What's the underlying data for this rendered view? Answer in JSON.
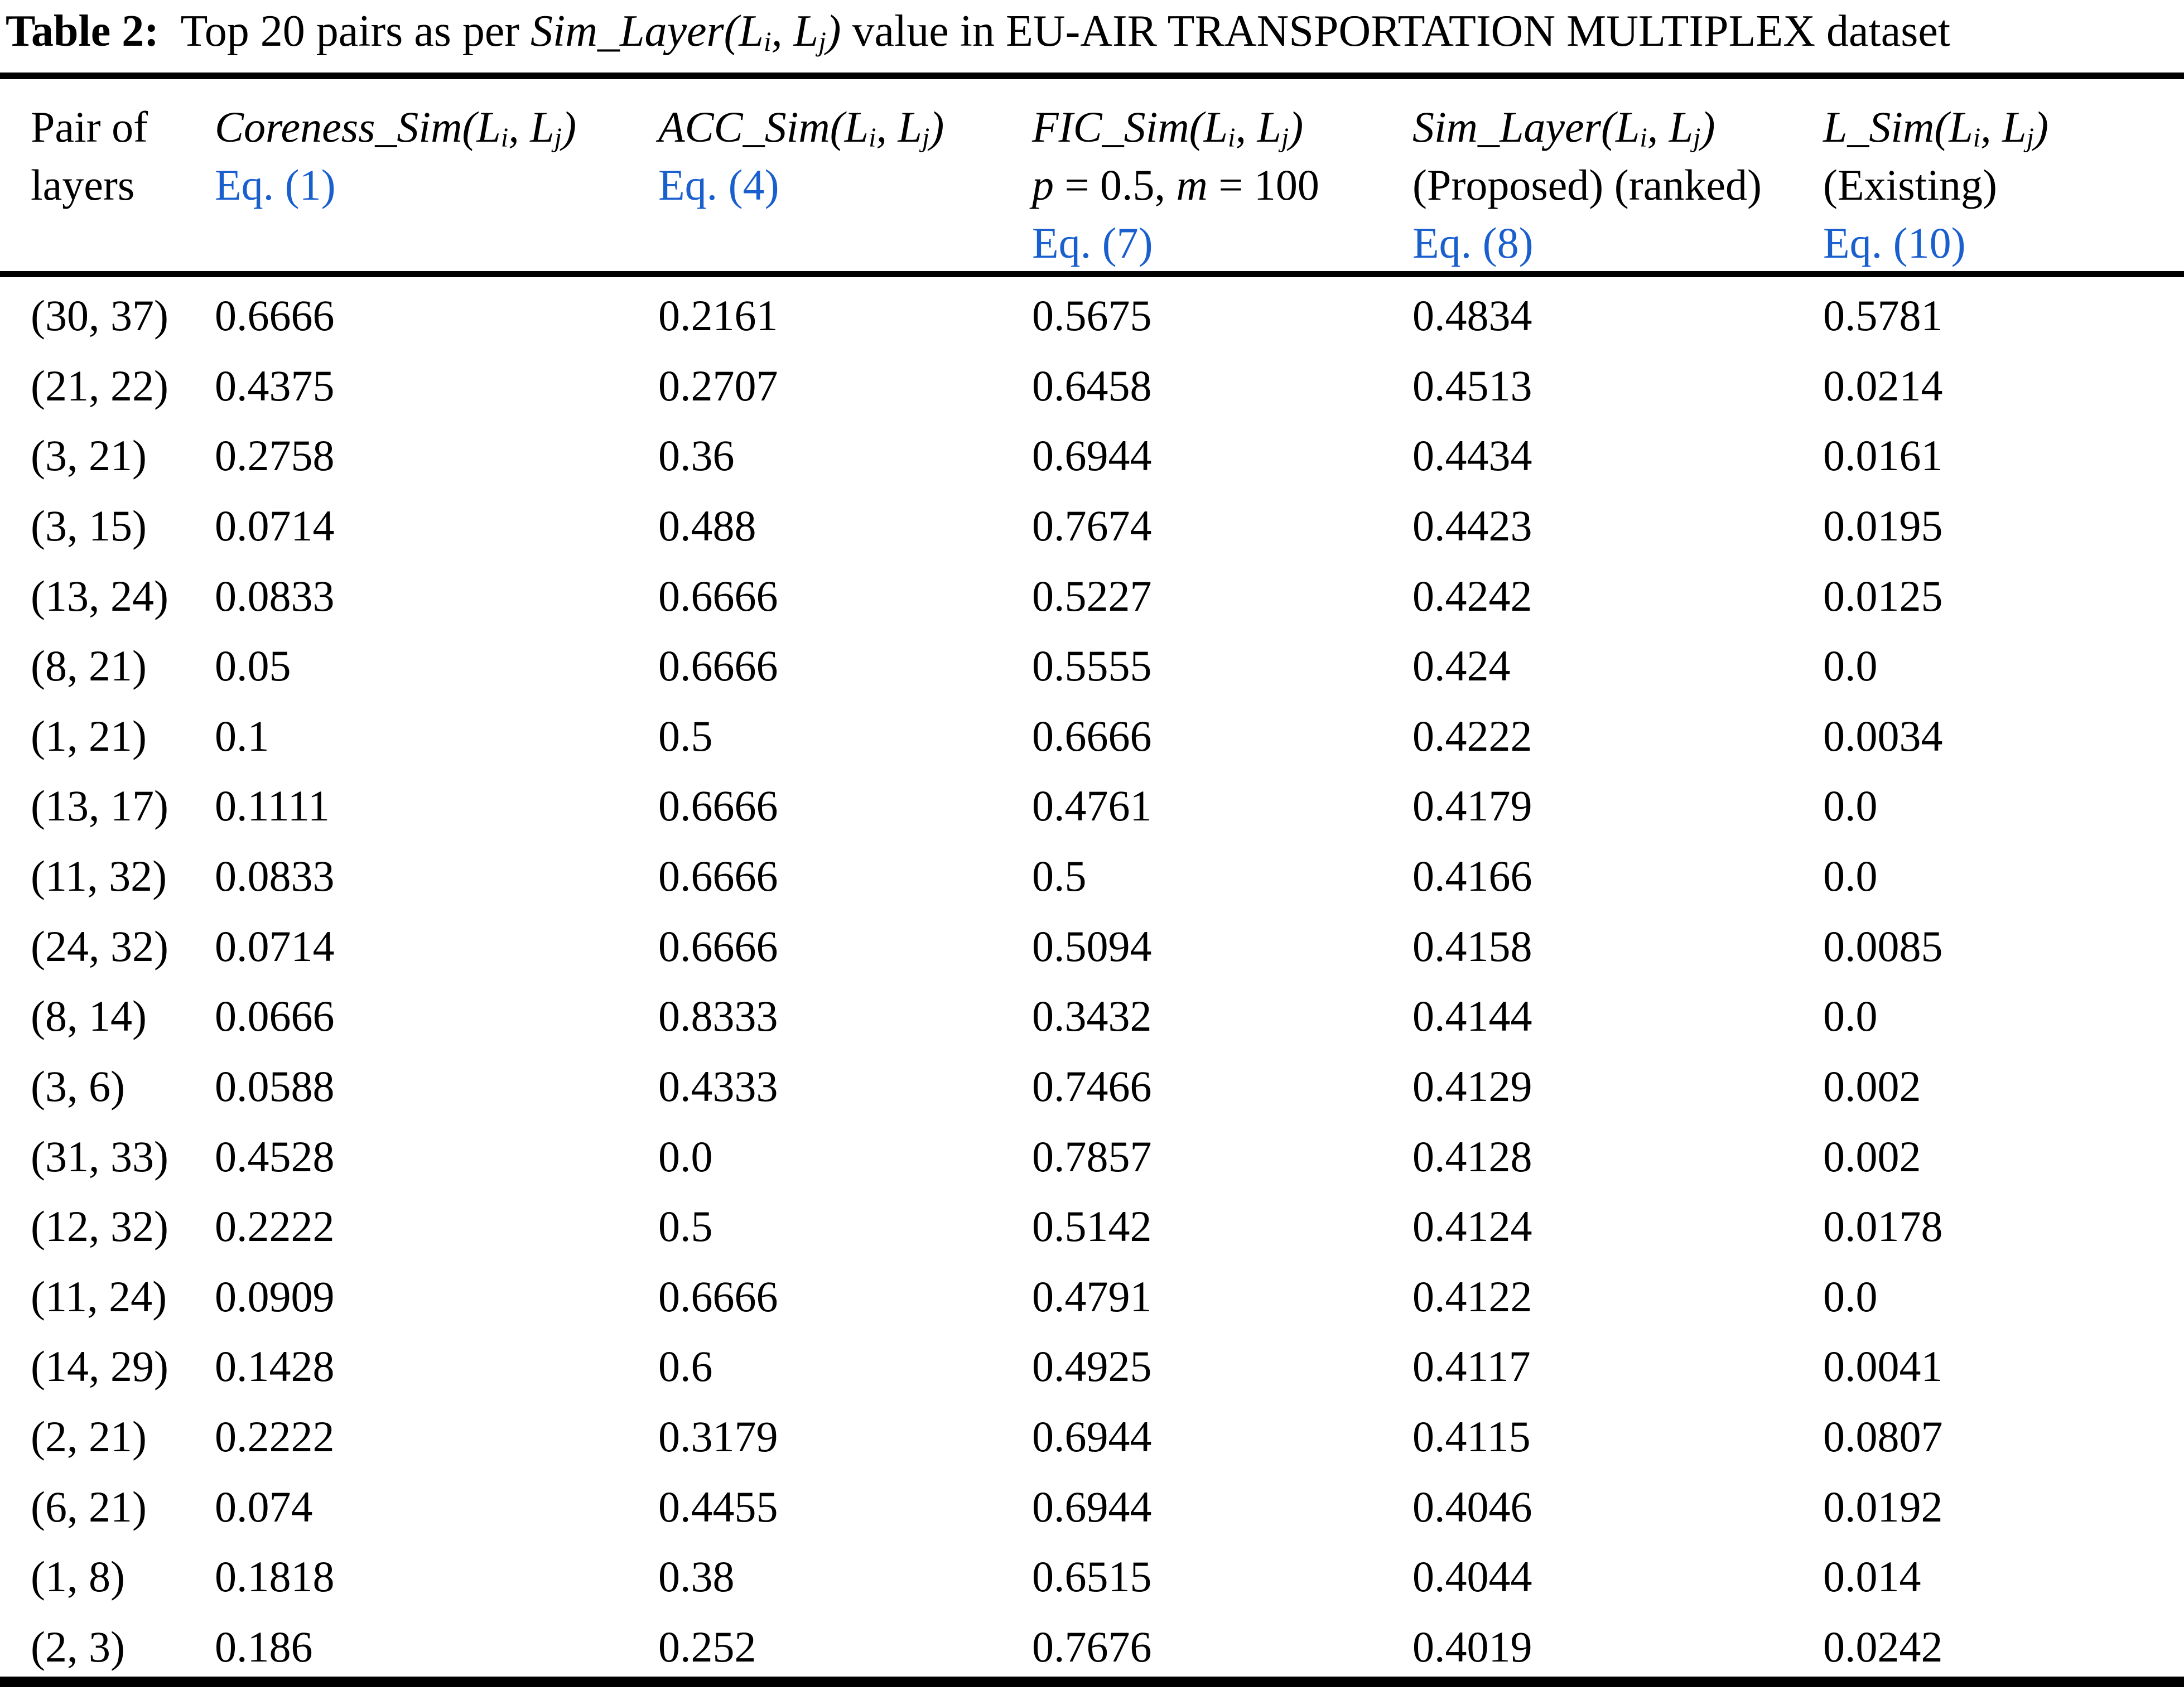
{
  "title": {
    "segments": [
      {
        "text": "Table 2:",
        "style": "bold"
      },
      {
        "text": "  Top 20 pairs as per ",
        "style": "plain"
      },
      {
        "text": "Sim_Layer(L{s}i{/s}, L{s}j{/s})",
        "style": "formula"
      },
      {
        "text": " value in EU-AIR TRANSPORTATION MULTIPLEX dataset",
        "style": "plain"
      }
    ]
  },
  "colors": {
    "accent_blue": "#1a5fce",
    "text": "#000000",
    "background": "#ffffff"
  },
  "table": {
    "columns": [
      {
        "id": "pair-of-layers",
        "lines": [
          {
            "text": "Pair of",
            "style": "plain"
          },
          {
            "text": "layers",
            "style": "plain"
          }
        ]
      },
      {
        "id": "coreness-sim",
        "lines": [
          {
            "text": "Coreness_Sim(L{s}i{/s}, L{s}j{/s})",
            "style": "formula"
          },
          {
            "text": "Eq. (1)",
            "style": "eq"
          }
        ]
      },
      {
        "id": "acc-sim",
        "lines": [
          {
            "text": "ACC_Sim(L{s}i{/s}, L{s}j{/s})",
            "style": "formula"
          },
          {
            "text": "Eq. (4)",
            "style": "eq"
          }
        ]
      },
      {
        "id": "fic-sim",
        "lines": [
          {
            "text": "FIC_Sim(L{s}i{/s}, L{s}j{/s})",
            "style": "formula"
          },
          {
            "text": "{i}p{/i} = 0.5, {i}m{/i} = 100",
            "style": "plain"
          },
          {
            "text": "Eq. (7)",
            "style": "eq"
          }
        ]
      },
      {
        "id": "sim-layer",
        "lines": [
          {
            "text": "Sim_Layer(L{s}i{/s}, L{s}j{/s})",
            "style": "formula"
          },
          {
            "text": "(Proposed) (ranked)",
            "style": "plain"
          },
          {
            "text": "Eq. (8)",
            "style": "eq"
          }
        ]
      },
      {
        "id": "l-sim",
        "lines": [
          {
            "text": "L_Sim(L{s}i{/s}, L{s}j{/s})",
            "style": "formula"
          },
          {
            "text": "(Existing)",
            "style": "plain"
          },
          {
            "text": "Eq. (10)",
            "style": "eq"
          }
        ]
      }
    ],
    "rows": [
      {
        "cells": [
          "(30, 37)",
          "0.6666",
          "0.2161",
          "0.5675",
          "0.4834",
          "0.5781"
        ]
      },
      {
        "cells": [
          "(21, 22)",
          "0.4375",
          "0.2707",
          "0.6458",
          "0.4513",
          "0.0214"
        ]
      },
      {
        "cells": [
          "(3, 21)",
          "0.2758",
          "0.36",
          "0.6944",
          "0.4434",
          "0.0161"
        ]
      },
      {
        "cells": [
          "(3, 15)",
          "0.0714",
          "0.488",
          "0.7674",
          "0.4423",
          "0.0195"
        ]
      },
      {
        "cells": [
          "(13, 24)",
          "0.0833",
          "0.6666",
          "0.5227",
          "0.4242",
          "0.0125"
        ]
      },
      {
        "cells": [
          "(8, 21)",
          "0.05",
          "0.6666",
          "0.5555",
          "0.424",
          "0.0"
        ]
      },
      {
        "cells": [
          "(1, 21)",
          "0.1",
          "0.5",
          "0.6666",
          "0.4222",
          "0.0034"
        ]
      },
      {
        "cells": [
          "(13, 17)",
          "0.1111",
          "0.6666",
          "0.4761",
          "0.4179",
          "0.0"
        ]
      },
      {
        "cells": [
          "(11, 32)",
          "0.0833",
          "0.6666",
          "0.5",
          "0.4166",
          "0.0"
        ]
      },
      {
        "cells": [
          "(24, 32)",
          "0.0714",
          "0.6666",
          "0.5094",
          "0.4158",
          "0.0085"
        ]
      },
      {
        "cells": [
          "(8, 14)",
          "0.0666",
          "0.8333",
          "0.3432",
          "0.4144",
          "0.0"
        ]
      },
      {
        "cells": [
          "(3, 6)",
          "0.0588",
          "0.4333",
          "0.7466",
          "0.4129",
          "0.002"
        ]
      },
      {
        "cells": [
          "(31, 33)",
          "0.4528",
          "0.0",
          "0.7857",
          "0.4128",
          "0.002"
        ]
      },
      {
        "cells": [
          "(12, 32)",
          "0.2222",
          "0.5",
          "0.5142",
          "0.4124",
          "0.0178"
        ]
      },
      {
        "cells": [
          "(11, 24)",
          "0.0909",
          "0.6666",
          "0.4791",
          "0.4122",
          "0.0"
        ]
      },
      {
        "cells": [
          "(14, 29)",
          "0.1428",
          "0.6",
          "0.4925",
          "0.4117",
          "0.0041"
        ]
      },
      {
        "cells": [
          "(2, 21)",
          "0.2222",
          "0.3179",
          "0.6944",
          "0.4115",
          "0.0807"
        ]
      },
      {
        "cells": [
          "(6, 21)",
          "0.074",
          "0.4455",
          "0.6944",
          "0.4046",
          "0.0192"
        ]
      },
      {
        "cells": [
          "(1, 8)",
          "0.1818",
          "0.38",
          "0.6515",
          "0.4044",
          "0.014"
        ]
      },
      {
        "cells": [
          "(2, 3)",
          "0.186",
          "0.252",
          "0.7676",
          "0.4019",
          "0.0242"
        ]
      }
    ]
  }
}
